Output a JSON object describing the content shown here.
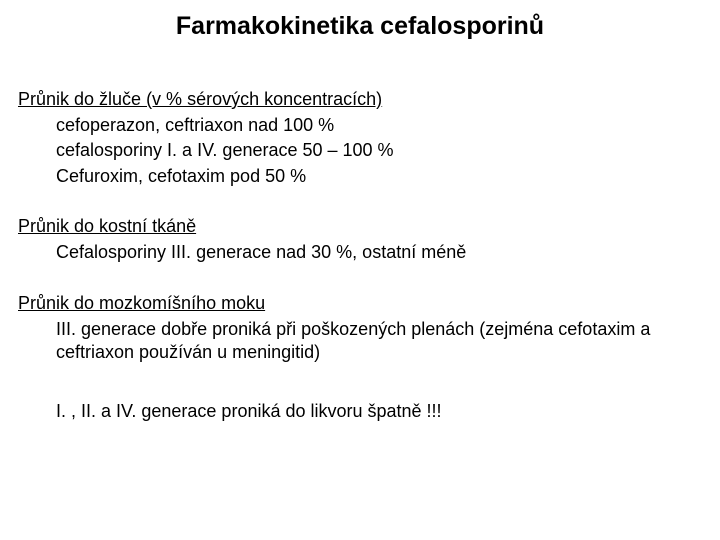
{
  "title": "Farmakokinetika cefalosporinů",
  "sections": [
    {
      "heading": "Průnik do žluče (v % sérových koncentracích)",
      "lines": [
        "cefoperazon, ceftriaxon nad 100 %",
        "cefalosporiny I. a IV. generace 50 – 100 %",
        "Cefuroxim, cefotaxim pod 50 %"
      ]
    },
    {
      "heading": "Průnik do kostní tkáně",
      "lines": [
        "Cefalosporiny III. generace nad 30 %, ostatní méně"
      ]
    },
    {
      "heading": "Průnik do mozkomíšního moku",
      "lines": [
        "III. generace dobře proniká při poškozených plenách (zejména cefotaxim a ceftriaxon používán u meningitid)",
        "",
        "I. , II. a IV. generace proniká  do likvoru špatně !!!"
      ]
    }
  ],
  "colors": {
    "background": "#ffffff",
    "text": "#000000"
  },
  "typography": {
    "title_fontsize_pt": 19,
    "body_fontsize_pt": 14,
    "font_family": "Arial"
  }
}
